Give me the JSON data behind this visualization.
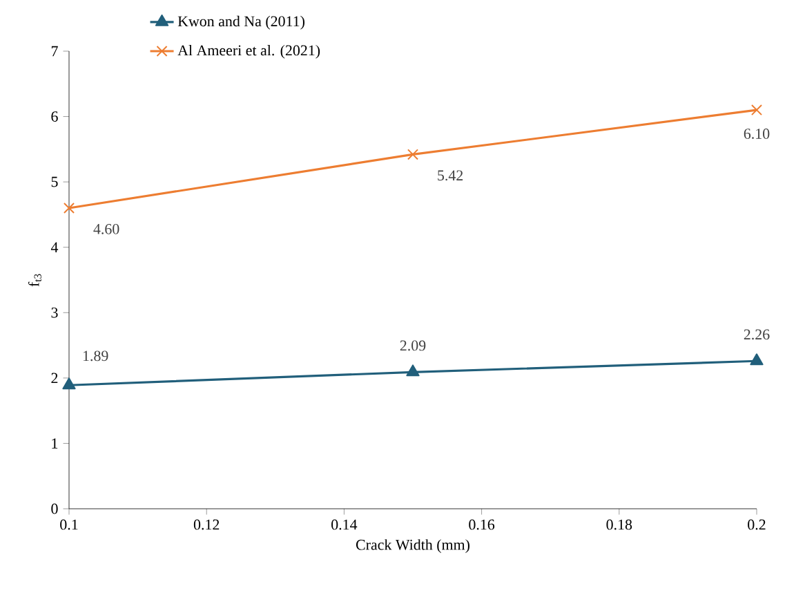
{
  "chart_data": {
    "type": "line",
    "xlabel": "Crack Width (mm)",
    "ylabel": "f$_{t3}$",
    "x": [
      0.1,
      0.15,
      0.2
    ],
    "series": [
      {
        "name": "Kwon and Na (2011)",
        "color": "#215f7b",
        "marker": "triangle",
        "values": [
          1.89,
          2.09,
          2.26
        ],
        "value_labels": [
          "1.89",
          "2.09",
          "2.26"
        ]
      },
      {
        "name": "Al Ameeri et al. (2021)",
        "color": "#ed7d31",
        "marker": "cross",
        "values": [
          4.6,
          5.42,
          6.1
        ],
        "value_labels": [
          "4.60",
          "5.42",
          "6.10"
        ]
      }
    ],
    "xlim": [
      0.1,
      0.2
    ],
    "xticks": [
      0.1,
      0.12,
      0.14,
      0.16,
      0.18,
      0.2
    ],
    "ylim": [
      0,
      7
    ],
    "yticks": [
      0,
      1,
      2,
      3,
      4,
      5,
      6,
      7
    ],
    "grid": false,
    "legend": "top",
    "line_style": "solid"
  }
}
